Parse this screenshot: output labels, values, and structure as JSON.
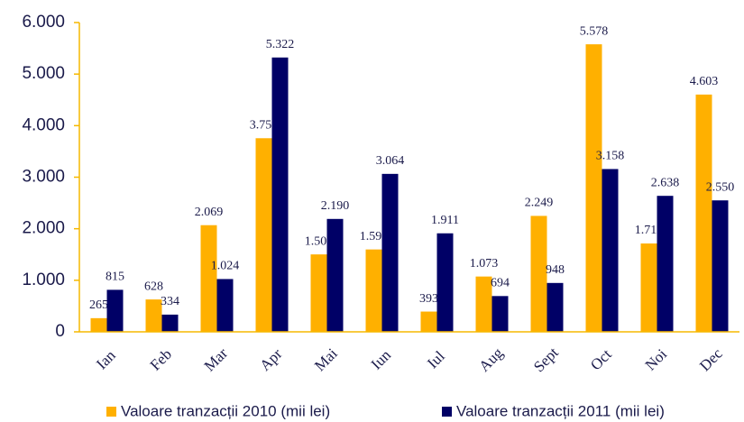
{
  "chart_data": {
    "type": "bar",
    "categories": [
      "Ian",
      "Feb",
      "Mar",
      "Apr",
      "Mai",
      "Iun",
      "Iul",
      "Aug",
      "Sept",
      "Oct",
      "Noi",
      "Dec"
    ],
    "series": [
      {
        "name": "Valoare tranzacții 2010 (mii lei)",
        "color": "#ffb000",
        "values": [
          265,
          628,
          2069,
          3756,
          1502,
          1598,
          393,
          1073,
          2249,
          5578,
          1714,
          4603
        ],
        "value_labels": [
          "265",
          "628",
          "2.069",
          "3.756",
          "1.502",
          "1.598",
          "393",
          "1.073",
          "2.249",
          "5.578",
          "1.714",
          "4.603"
        ]
      },
      {
        "name": "Valoare tranzacții 2011 (mii lei)",
        "color": "#000066",
        "values": [
          815,
          334,
          1024,
          5322,
          2190,
          3064,
          1911,
          694,
          948,
          3158,
          2638,
          2550
        ],
        "value_labels": [
          "815",
          "334",
          "1.024",
          "5.322",
          "2.190",
          "3.064",
          "1.911",
          "694",
          "948",
          "3.158",
          "2.638",
          "2.550"
        ]
      }
    ],
    "ylim": [
      0,
      6000
    ],
    "yticks": [
      0,
      {
        "value": 1000,
        "label": "1.000"
      },
      {
        "value": 2000,
        "label": "2.000"
      },
      {
        "value": 3000,
        "label": "3.000"
      },
      {
        "value": 4000,
        "label": "4.000"
      },
      {
        "value": 5000,
        "label": "5.000"
      },
      {
        "value": 6000,
        "label": "6.000"
      }
    ],
    "grid": false,
    "legend": "bottom"
  }
}
